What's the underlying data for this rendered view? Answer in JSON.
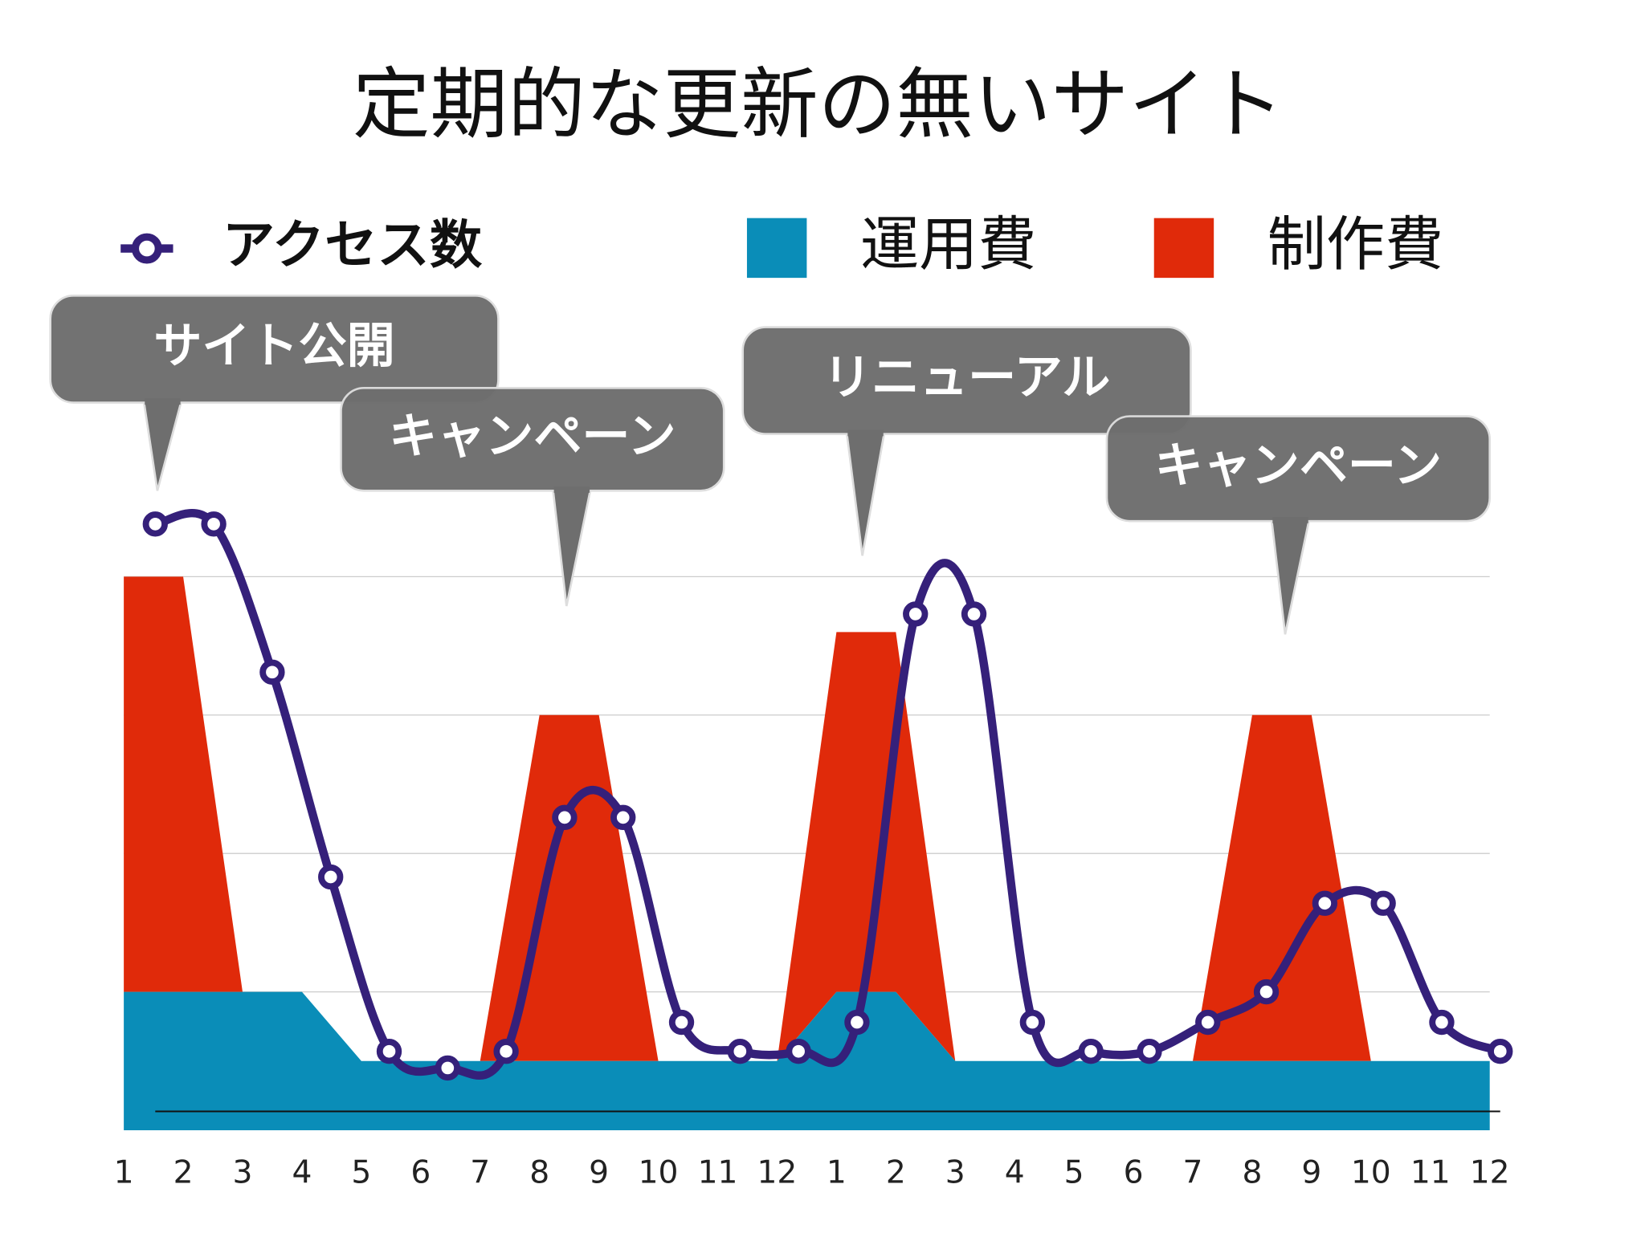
{
  "chart_data": {
    "type": "area-line",
    "title": "定期的な更新の無いサイト",
    "categories": [
      "1",
      "2",
      "3",
      "4",
      "5",
      "6",
      "7",
      "8",
      "9",
      "10",
      "11",
      "12",
      "1",
      "2",
      "3",
      "4",
      "5",
      "6",
      "7",
      "8",
      "9",
      "10",
      "11",
      "12"
    ],
    "series": [
      {
        "name": "アクセス数",
        "type": "line",
        "color": "#35207a",
        "values": [
          4.38,
          4.38,
          3.31,
          1.83,
          0.57,
          0.45,
          0.57,
          2.26,
          2.26,
          0.78,
          0.57,
          0.57,
          0.78,
          3.73,
          3.73,
          0.78,
          0.57,
          0.57,
          0.78,
          1.0,
          1.64,
          1.64,
          0.78,
          0.57
        ]
      },
      {
        "name": "運用費",
        "type": "area",
        "color": "#0a8db8",
        "values": [
          1,
          1,
          1,
          1,
          0.5,
          0.5,
          0.5,
          0.5,
          0.5,
          0.5,
          0.5,
          0.5,
          1,
          1,
          0.5,
          0.5,
          0.5,
          0.5,
          0.5,
          0.5,
          0.5,
          0.5,
          0.5,
          0.5
        ]
      },
      {
        "name": "制作費",
        "type": "area",
        "stacked": true,
        "color": "#e02a0a",
        "values": [
          3,
          3,
          0,
          0,
          0,
          0,
          0,
          2.5,
          2.5,
          0,
          0,
          0,
          2.6,
          2.6,
          0,
          0,
          0,
          0,
          0,
          2.5,
          2.5,
          0,
          0,
          0
        ]
      }
    ],
    "annotations": [
      "サイト公開",
      "キャンペーン",
      "リニューアル",
      "キャンペーン"
    ],
    "ylim": [
      0,
      4.5
    ],
    "yticks": [
      1,
      2,
      3,
      4
    ],
    "grid": true
  }
}
